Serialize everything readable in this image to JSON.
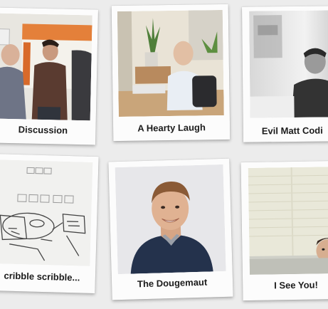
{
  "gallery": {
    "items": [
      {
        "caption": "Discussion",
        "icon": "discussion-photo-icon"
      },
      {
        "caption": "A Hearty Laugh",
        "icon": "hearty-laugh-photo-icon"
      },
      {
        "caption": "Evil Matt Codi",
        "icon": "evil-matt-coding-photo-icon"
      },
      {
        "caption": "cribble scribble...",
        "icon": "whiteboard-scribble-photo-icon"
      },
      {
        "caption": "The Dougemaut",
        "icon": "portrait-photo-icon"
      },
      {
        "caption": "I See You!",
        "icon": "peeking-photo-icon"
      }
    ]
  },
  "colors": {
    "background": "#ececec",
    "card": "#fcfcfc",
    "caption_text": "#1b1b1b"
  }
}
